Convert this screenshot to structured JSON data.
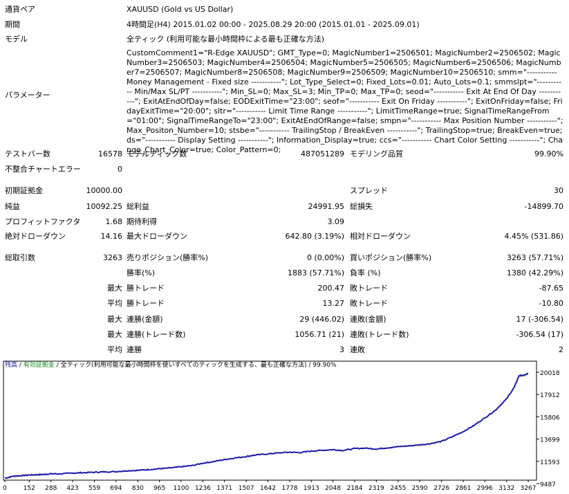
{
  "report": {
    "symbol_label": "通貨ペア",
    "symbol_value": "XAUUSD (Gold vs US Dollar)",
    "period_label": "期間",
    "period_value": "4時間足(H4) 2015.01.02 00:00 - 2025.08.29 20:00 (2015.01.01 - 2025.09.01)",
    "model_label": "モデル",
    "model_value": "全ティック (利用可能な最小時間枠による最も正確な方法)",
    "params_label": "パラメーター",
    "params_value": "CustomComment1=\"R-Edge XAUUSD\"; GMT_Type=0; MagicNumber1=2506501; MagicNumber2=2506502; MagicNumber3=2506503; MagicNumber4=2506504; MagicNumber5=2506505; MagicNumber6=2506506; MagicNumber7=2506507; MagicNumber8=2506508; MagicNumber9=2506509; MagicNumber10=2506510; smm=\"----------- Money Management - Fixed size -----------\"; Lot_Type_Select=0; Fixed_Lots=0.01; Auto_Lots=0.1; smmslpt=\"----------- Min/Max SL/PT -----------\"; Min_SL=0; Max_SL=3; Min_TP=0; Max_TP=0; seod=\"----------- Exit At End Of Day -----------\"; ExitAtEndOfDay=false; EODExitTime=\"23:00\"; seof=\"----------- Exit On Friday -----------\"; ExitOnFriday=false; FridayExitTime=\"20:00\"; sltr=\"----------- Limit Time Range -----------\"; LimitTimeRange=true; SignalTimeRangeFrom=\"01:00\"; SignalTimeRangeTo=\"23:00\"; ExitAtEndOfRange=false; smpn=\"----------- Max Position Number -----------\"; Max_Positon_Number=10; stsbe=\"----------- TrailingStop / BreakEven -----------\"; TrailingStop=true; BreakEven=true; ds=\"----------- Display Setting -----------\"; Information_Display=true; ccs=\"----------- Chart Color Setting -----------\"; Change_Chart_Color=true; Color_Pattern=0;"
  },
  "stats": {
    "bars_label": "テストバー数",
    "bars_value": "16578",
    "ticks_label": "モデルティック数",
    "ticks_value": "487051289",
    "quality_label": "モデリング品質",
    "quality_value": "99.90%",
    "mismatch_label": "不整合チャートエラー",
    "mismatch_value": "0",
    "deposit_label": "初期証拠金",
    "deposit_value": "10000.00",
    "spread_label": "スプレッド",
    "spread_value": "30",
    "net_label": "純益",
    "net_value": "10092.25",
    "gross_profit_label": "総利益",
    "gross_profit_value": "24991.95",
    "gross_loss_label": "総損失",
    "gross_loss_value": "-14899.70",
    "pf_label": "プロフィットファクタ",
    "pf_value": "1.68",
    "expected_label": "期待利得",
    "expected_value": "3.09",
    "abs_dd_label": "絶対ドローダウン",
    "abs_dd_value": "14.16",
    "max_dd_label": "最大ドローダウン",
    "max_dd_value": "642.80 (3.19%)",
    "rel_dd_label": "相対ドローダウン",
    "rel_dd_value": "4.45% (531.86)",
    "trades_label": "総取引数",
    "trades_value": "3263",
    "short_label": "売りポジション(勝率%)",
    "short_value": "0 (0.00%)",
    "long_label": "買いポジション(勝率%)",
    "long_value": "3263 (57.71%)",
    "win_label": "勝率(%)",
    "win_value": "1883 (57.71%)",
    "loss_label": "負率 (%)",
    "loss_value": "1380 (42.29%)",
    "max_word": "最大",
    "avg_word": "平均",
    "lw_label": "勝トレード",
    "lw_value": "200.47",
    "ll_label": "敗トレード",
    "ll_value": "-87.65",
    "aw_label": "勝トレード",
    "aw_value": "13.27",
    "al_label": "敗トレード",
    "al_value": "-10.80",
    "mcw_label": "連勝(金額)",
    "mcw_value": "29 (446.02)",
    "mcl_label": "連敗(金額)",
    "mcl_value": "17 (-306.54)",
    "mcp_label": "連勝(トレード数)",
    "mcp_value": "1056.71 (21)",
    "mcpl_label": "連敗(トレード数)",
    "mcpl_value": "-306.54 (17)",
    "acw_label": "連勝",
    "acw_value": "3",
    "acl_label": "連敗",
    "acl_value": "2"
  },
  "chart_data": {
    "type": "line",
    "legend_balance": "残高",
    "legend_margin": "有効証拠金",
    "legend_rest": "全ティック(利用可能な最小時間枠を使いすべてのティックを生成する、最も正確な方法)",
    "legend_quality": "99.90%",
    "balance_color": "#1a1aa6",
    "x_ticks": [
      "0",
      "152",
      "288",
      "423",
      "559",
      "694",
      "830",
      "965",
      "1100",
      "1236",
      "1371",
      "1507",
      "1642",
      "1778",
      "1913",
      "2048",
      "2184",
      "2319",
      "2455",
      "2590",
      "2726",
      "2861",
      "2996",
      "3132",
      "3267"
    ],
    "y_ticks": [
      "9487",
      "11593",
      "13699",
      "15806",
      "17912",
      "20018"
    ],
    "ylim": [
      9487,
      20018
    ],
    "xlim": [
      0,
      3267
    ],
    "series": [
      {
        "values": [
          [
            0,
            10000
          ],
          [
            50,
            10180
          ],
          [
            100,
            10240
          ],
          [
            152,
            10300
          ],
          [
            200,
            10330
          ],
          [
            250,
            10360
          ],
          [
            288,
            10420
          ],
          [
            340,
            10400
          ],
          [
            423,
            10480
          ],
          [
            480,
            10520
          ],
          [
            559,
            10560
          ],
          [
            620,
            10600
          ],
          [
            694,
            10620
          ],
          [
            760,
            10700
          ],
          [
            830,
            10740
          ],
          [
            900,
            10820
          ],
          [
            965,
            10900
          ],
          [
            1030,
            10960
          ],
          [
            1100,
            11080
          ],
          [
            1170,
            11200
          ],
          [
            1236,
            11420
          ],
          [
            1300,
            11560
          ],
          [
            1371,
            11760
          ],
          [
            1430,
            11900
          ],
          [
            1507,
            12050
          ],
          [
            1560,
            12180
          ],
          [
            1642,
            12300
          ],
          [
            1700,
            12380
          ],
          [
            1778,
            12460
          ],
          [
            1840,
            12420
          ],
          [
            1913,
            12560
          ],
          [
            1980,
            12640
          ],
          [
            2048,
            12700
          ],
          [
            2110,
            12620
          ],
          [
            2184,
            12800
          ],
          [
            2250,
            12840
          ],
          [
            2319,
            12760
          ],
          [
            2380,
            12860
          ],
          [
            2455,
            12980
          ],
          [
            2520,
            13050
          ],
          [
            2590,
            13150
          ],
          [
            2650,
            13250
          ],
          [
            2726,
            13480
          ],
          [
            2790,
            13900
          ],
          [
            2861,
            14400
          ],
          [
            2930,
            15000
          ],
          [
            2996,
            15700
          ],
          [
            3060,
            16400
          ],
          [
            3132,
            17500
          ],
          [
            3180,
            18600
          ],
          [
            3210,
            19700
          ],
          [
            3240,
            19720
          ],
          [
            3267,
            19900
          ]
        ]
      }
    ]
  }
}
